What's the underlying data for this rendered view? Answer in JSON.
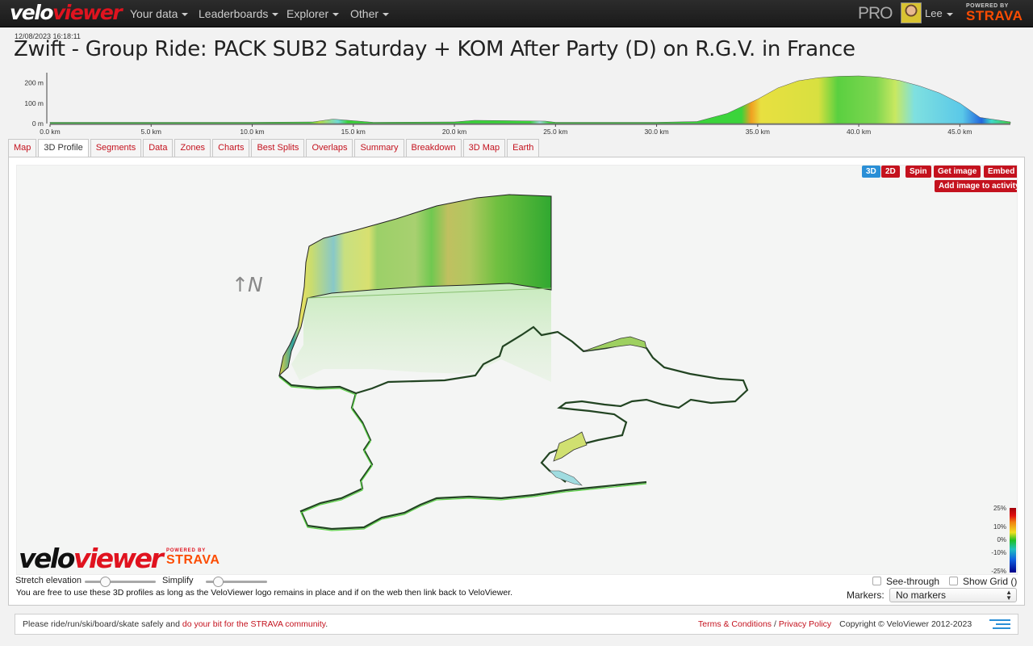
{
  "nav": {
    "logo_velo": "velo",
    "logo_viewer": "viewer",
    "items": [
      {
        "label": "Your data"
      },
      {
        "label": "Leaderboards"
      },
      {
        "label": "Explorer"
      },
      {
        "label": "Other"
      }
    ],
    "pro_label": "PRO",
    "user_name": "Lee",
    "powered_by": "POWERED BY",
    "strava": "STRAVA"
  },
  "header": {
    "timestamp": "12/08/2023 16:18:11",
    "title": "Zwift - Group Ride: PACK SUB2 Saturday + KOM After Party (D) on R.G.V. in France"
  },
  "chart_data": {
    "type": "area",
    "title": "",
    "xlabel": "",
    "ylabel": "",
    "x_ticks": [
      "0.0 km",
      "5.0 km",
      "10.0 km",
      "15.0 km",
      "20.0 km",
      "25.0 km",
      "30.0 km",
      "35.0 km",
      "40.0 km",
      "45.0 km"
    ],
    "y_ticks": [
      "0 m",
      "100 m",
      "200 m"
    ],
    "xlim": [
      0,
      47.5
    ],
    "ylim": [
      0,
      250
    ],
    "x": [
      0,
      5,
      10,
      13,
      14,
      15,
      16,
      20,
      21,
      24.5,
      25,
      30,
      32,
      33.5,
      35,
      36,
      37,
      38,
      39,
      40,
      41,
      42,
      43,
      44,
      45,
      46,
      47.5
    ],
    "y": [
      6,
      6,
      6,
      8,
      22,
      14,
      6,
      8,
      16,
      12,
      6,
      6,
      10,
      50,
      120,
      175,
      210,
      225,
      232,
      234,
      228,
      212,
      185,
      150,
      100,
      30,
      8
    ]
  },
  "tabs": [
    {
      "label": "Map",
      "active": false
    },
    {
      "label": "3D Profile",
      "active": true
    },
    {
      "label": "Segments",
      "active": false
    },
    {
      "label": "Data",
      "active": false
    },
    {
      "label": "Zones",
      "active": false
    },
    {
      "label": "Charts",
      "active": false
    },
    {
      "label": "Best Splits",
      "active": false
    },
    {
      "label": "Overlaps",
      "active": false
    },
    {
      "label": "Summary",
      "active": false
    },
    {
      "label": "Breakdown",
      "active": false
    },
    {
      "label": "3D Map",
      "active": false
    },
    {
      "label": "Earth",
      "active": false
    }
  ],
  "viewer": {
    "btn_3d": "3D",
    "btn_2d": "2D",
    "btn_spin": "Spin",
    "btn_get_image": "Get image",
    "btn_embed": "Embed",
    "btn_add_image": "Add image to activity",
    "north_glyph": "↑N",
    "legend_labels": [
      "25%",
      "10%",
      "0%",
      "-10%",
      "-25%"
    ],
    "logo_velo": "velo",
    "logo_viewer": "viewer",
    "powered_by": "POWERED BY",
    "strava": "STRAVA"
  },
  "controls": {
    "stretch_label": "Stretch elevation",
    "stretch_value": 0.25,
    "simplify_label": "Simplify",
    "simplify_value": 0.15,
    "free_text": "You are free to use these 3D profiles as long as the VeloViewer logo remains in place and if on the web then link back to VeloViewer.",
    "see_through_label": "See-through",
    "show_grid_label": "Show Grid ()",
    "markers_label": "Markers:",
    "markers_value": "No markers"
  },
  "footer": {
    "text_prefix": "Please ride/run/ski/board/skate safely and ",
    "link_text": "do your bit for the STRAVA community",
    "text_suffix": ".",
    "terms": "Terms & Conditions",
    "separator": " / ",
    "privacy": "Privacy Policy",
    "copyright": "Copyright © VeloViewer 2012-2023"
  },
  "colors": {
    "accent_red": "#c4121e",
    "strava_orange": "#fc4c02",
    "button_blue": "#2a8fd6"
  }
}
